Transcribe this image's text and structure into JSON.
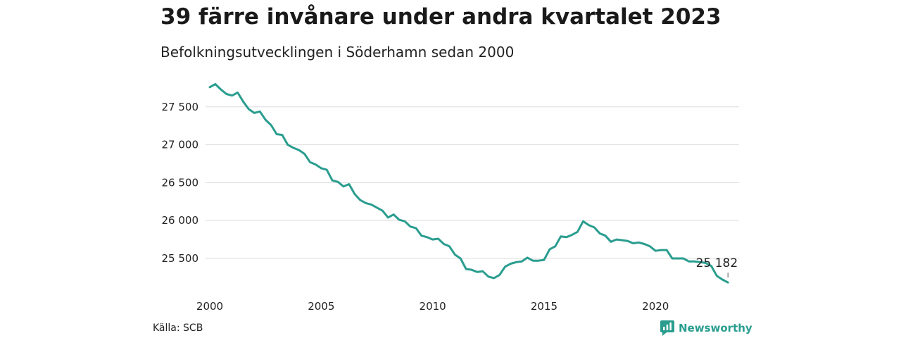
{
  "title": "39 färre invånare under andra kvartalet 2023",
  "subtitle": "Befolkningsutvecklingen i Söderhamn sedan 2000",
  "source": "Källa: SCB",
  "brand": {
    "name": "Newsworthy",
    "icon": "newsworthy-logo-icon",
    "color": "#2a9d8f"
  },
  "chart_data": {
    "type": "line",
    "title": "39 färre invånare under andra kvartalet 2023",
    "subtitle": "Befolkningsutvecklingen i Söderhamn sedan 2000",
    "xlabel": "",
    "ylabel": "",
    "xlim": [
      2000,
      2023.75
    ],
    "ylim": [
      25100,
      27870
    ],
    "x_ticks": [
      2000,
      2005,
      2010,
      2015,
      2020
    ],
    "x_tick_labels": [
      "2000",
      "2005",
      "2010",
      "2015",
      "2020"
    ],
    "y_ticks": [
      25500,
      26000,
      26500,
      27000,
      27500
    ],
    "y_tick_labels": [
      "25 500",
      "26 000",
      "26 500",
      "27 000",
      "27 500"
    ],
    "grid": "horizontal",
    "line_color": "#2a9d8f",
    "end_label": "25 182",
    "series": [
      {
        "x": [
          2000,
          2000.25,
          2000.5,
          2000.75,
          2001,
          2001.25,
          2001.5,
          2001.75,
          2002,
          2002.25,
          2002.5,
          2002.75,
          2003,
          2003.25,
          2003.5,
          2003.75,
          2004,
          2004.25,
          2004.5,
          2004.75,
          2005,
          2005.25,
          2005.5,
          2005.75,
          2006,
          2006.25,
          2006.5,
          2006.75,
          2007,
          2007.25,
          2007.5,
          2007.75,
          2008,
          2008.25,
          2008.5,
          2008.75,
          2009,
          2009.25,
          2009.5,
          2009.75,
          2010,
          2010.25,
          2010.5,
          2010.75,
          2011,
          2011.25,
          2011.5,
          2011.75,
          2012,
          2012.25,
          2012.5,
          2012.75,
          2013,
          2013.25,
          2013.5,
          2013.75,
          2014,
          2014.25,
          2014.5,
          2014.75,
          2015,
          2015.25,
          2015.5,
          2015.75,
          2016,
          2016.25,
          2016.5,
          2016.75,
          2017,
          2017.25,
          2017.5,
          2017.75,
          2018,
          2018.25,
          2018.5,
          2018.75,
          2019,
          2019.25,
          2019.5,
          2019.75,
          2020,
          2020.25,
          2020.5,
          2020.75,
          2021,
          2021.25,
          2021.5,
          2021.75,
          2022,
          2022.25,
          2022.5,
          2022.75,
          2023,
          2023.25
        ],
        "values": [
          27760,
          27800,
          27730,
          27670,
          27650,
          27690,
          27570,
          27470,
          27420,
          27440,
          27330,
          27260,
          27140,
          27130,
          27000,
          26960,
          26930,
          26880,
          26770,
          26740,
          26690,
          26670,
          26530,
          26510,
          26450,
          26480,
          26350,
          26270,
          26230,
          26210,
          26170,
          26130,
          26040,
          26080,
          26010,
          25990,
          25920,
          25900,
          25800,
          25780,
          25750,
          25760,
          25690,
          25660,
          25550,
          25500,
          25360,
          25350,
          25320,
          25330,
          25260,
          25240,
          25280,
          25390,
          25430,
          25450,
          25460,
          25510,
          25470,
          25470,
          25480,
          25620,
          25660,
          25790,
          25780,
          25810,
          25850,
          25990,
          25940,
          25910,
          25830,
          25800,
          25720,
          25750,
          25740,
          25730,
          25700,
          25710,
          25690,
          25660,
          25600,
          25610,
          25610,
          25500,
          25500,
          25500,
          25460,
          25460,
          25450,
          25440,
          25400,
          25270,
          25221,
          25182
        ]
      }
    ]
  }
}
